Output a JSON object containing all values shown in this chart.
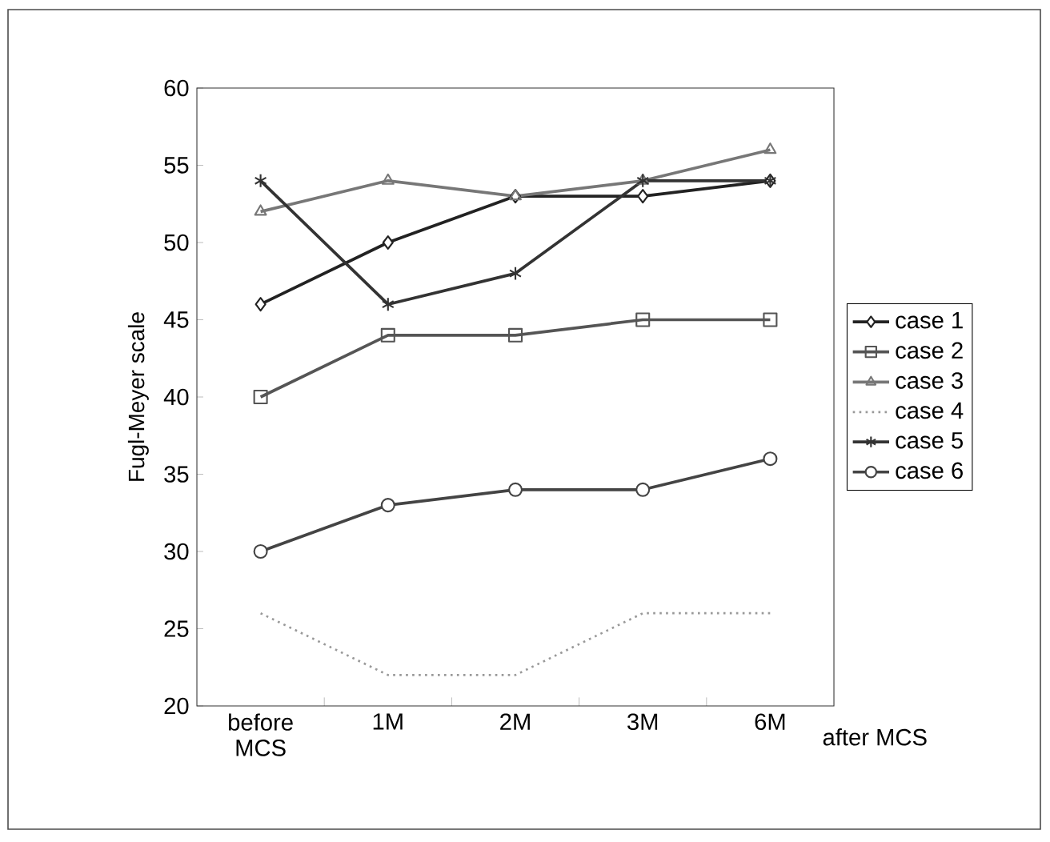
{
  "chart_data": {
    "type": "line",
    "xlabel": "after MCS",
    "ylabel": "Fugl-Meyer scale",
    "categories": [
      "before MCS",
      "1M",
      "2M",
      "3M",
      "6M"
    ],
    "ylim": [
      20,
      60
    ],
    "yticks": [
      20,
      25,
      30,
      35,
      40,
      45,
      50,
      55,
      60
    ],
    "legend": "right",
    "series": [
      {
        "name": "case 1",
        "color": "#222222",
        "marker": "diamond",
        "values": [
          46,
          50,
          53,
          53,
          54
        ]
      },
      {
        "name": "case 2",
        "color": "#555555",
        "marker": "square",
        "values": [
          40,
          44,
          44,
          45,
          45
        ]
      },
      {
        "name": "case 3",
        "color": "#777777",
        "marker": "triangle",
        "values": [
          52,
          54,
          53,
          54,
          56
        ]
      },
      {
        "name": "case 4",
        "color": "#999999",
        "marker": "none",
        "line_style": "dotted",
        "values": [
          26,
          22,
          22,
          26,
          26
        ]
      },
      {
        "name": "case 5",
        "color": "#333333",
        "marker": "cross",
        "values": [
          54,
          46,
          48,
          54,
          54
        ]
      },
      {
        "name": "case 6",
        "color": "#444444",
        "marker": "circle",
        "values": [
          30,
          33,
          34,
          34,
          36
        ]
      }
    ]
  }
}
